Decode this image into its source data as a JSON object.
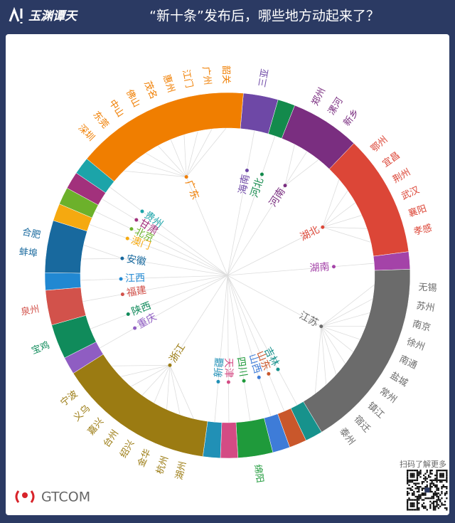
{
  "header": {
    "logo": "玉渊谭天",
    "title": "“新十条”发布后，哪些地方动起来了？"
  },
  "provinces": [
    {
      "name": "海南",
      "color": "#6e48a6",
      "cities": [
        "三亚"
      ]
    },
    {
      "name": "河北",
      "color": "#138a4c",
      "cities": []
    },
    {
      "name": "河南",
      "color": "#7a2e80",
      "cities": [
        "郑州",
        "漯河",
        "新乡"
      ]
    },
    {
      "name": "湖北",
      "color": "#dc4637",
      "cities": [
        "鄂州",
        "宜昌",
        "荆州",
        "武汉",
        "襄阳",
        "孝感"
      ]
    },
    {
      "name": "湖南",
      "color": "#a443a8",
      "cities": []
    },
    {
      "name": "江苏",
      "color": "#6b6b6b",
      "cities": [
        "无锡",
        "苏州",
        "南京",
        "徐州",
        "南通",
        "盐城",
        "常州",
        "镇江",
        "宿迁",
        "泰州"
      ]
    },
    {
      "name": "吉林",
      "color": "#17928c",
      "cities": []
    },
    {
      "name": "山东",
      "color": "#c9572b",
      "cities": []
    },
    {
      "name": "山西",
      "color": "#3e7cd8",
      "cities": []
    },
    {
      "name": "四川",
      "color": "#1f9a3b",
      "cities": [
        "绵阳"
      ]
    },
    {
      "name": "天津",
      "color": "#d44b84",
      "cities": []
    },
    {
      "name": "新疆",
      "color": "#2190b6",
      "cities": []
    },
    {
      "name": "浙江",
      "color": "#9b7b12",
      "cities": [
        "湖州",
        "杭州",
        "金华",
        "绍兴",
        "台州",
        "嘉兴",
        "义乌",
        "宁波"
      ]
    },
    {
      "name": "重庆",
      "color": "#8f5dc2",
      "cities": []
    },
    {
      "name": "陕西",
      "color": "#108b5b",
      "cities": [
        "宝鸡"
      ]
    },
    {
      "name": "福建",
      "color": "#d2524b",
      "cities": [
        "泉州"
      ]
    },
    {
      "name": "江西",
      "color": "#2188d2",
      "cities": []
    },
    {
      "name": "安徽",
      "color": "#18699e",
      "cities": [
        "蚌埠",
        "合肥"
      ]
    },
    {
      "name": "澳门",
      "color": "#f5a910",
      "cities": []
    },
    {
      "name": "北京",
      "color": "#6cb12b",
      "cities": []
    },
    {
      "name": "甘肃",
      "color": "#a2317c",
      "cities": []
    },
    {
      "name": "贵州",
      "color": "#1ca4a9",
      "cities": []
    },
    {
      "name": "广东",
      "color": "#f07e00",
      "cities": [
        "深圳",
        "东莞",
        "中山",
        "佛山",
        "茂名",
        "惠州",
        "江门",
        "广州",
        "韶关"
      ]
    }
  ],
  "footer": {
    "brand": "GTCOM",
    "qr_caption": "扫码了解更多"
  }
}
